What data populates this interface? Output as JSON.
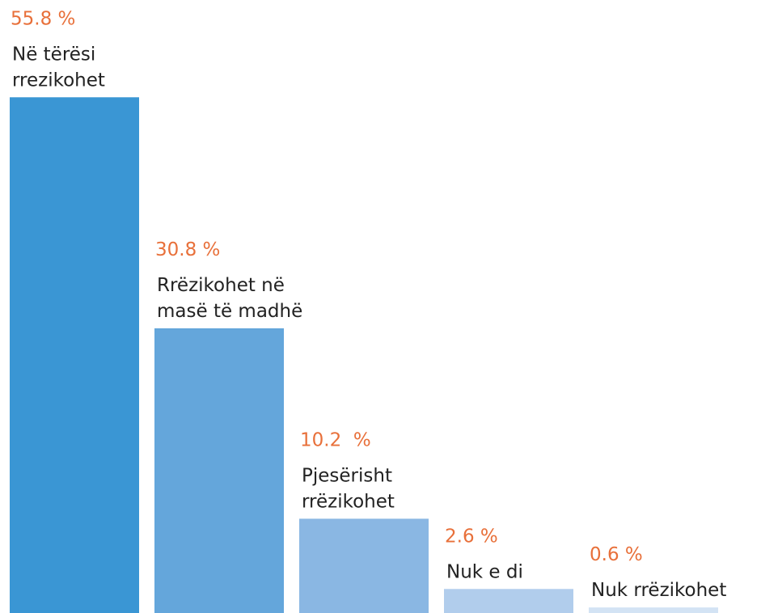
{
  "chart_data": {
    "type": "bar",
    "categories": [
      [
        "Në tërësi",
        "rrezikohet"
      ],
      [
        "Rrëzikohet në",
        "masë të madhë"
      ],
      [
        "Pjesërisht",
        "rrëzikohet"
      ],
      [
        "Nuk e di"
      ],
      [
        "Nuk rrëzikohet"
      ]
    ],
    "values": [
      55.8,
      30.8,
      10.2,
      2.6,
      0.6
    ],
    "value_labels": [
      "55.8 %",
      "30.8 %",
      "10.2  %",
      "2.6 %",
      "0.6 %"
    ],
    "colors": [
      "#3a96d4",
      "#64a6db",
      "#8ab7e3",
      "#b1cdec",
      "#d3e3f4"
    ],
    "ylim": [
      0,
      56
    ]
  }
}
